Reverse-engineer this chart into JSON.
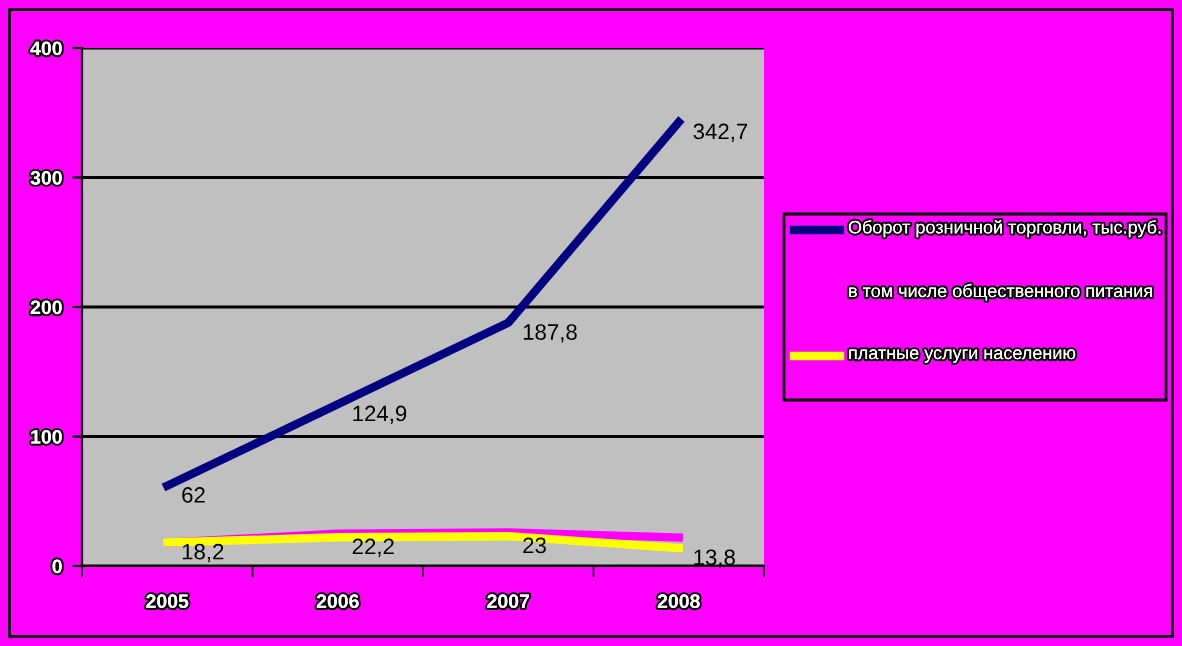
{
  "chart_data": {
    "type": "line",
    "categories": [
      "2005",
      "2006",
      "2007",
      "2008"
    ],
    "series": [
      {
        "name": "Оборот розничной торговли, тыс.руб.",
        "color": "#000080",
        "values": [
          62,
          124.9,
          187.8,
          342.7
        ],
        "value_labels": [
          "62",
          "124,9",
          "187,8",
          "342,7"
        ]
      },
      {
        "name": "в том числе общественного питания",
        "color": "#ff00ff",
        "values": [
          18,
          25,
          26,
          22
        ]
      },
      {
        "name": "платные услуги населению",
        "color": "#ffff00",
        "values": [
          18.2,
          22.2,
          23,
          13.8
        ],
        "value_labels": [
          "18,2",
          "22,2",
          "23",
          "13,8"
        ]
      }
    ],
    "ylim": [
      0,
      400
    ],
    "yticks": [
      0,
      100,
      200,
      300,
      400
    ],
    "grid": "y",
    "legend": "right",
    "marker": "none",
    "line_style": "solid"
  }
}
